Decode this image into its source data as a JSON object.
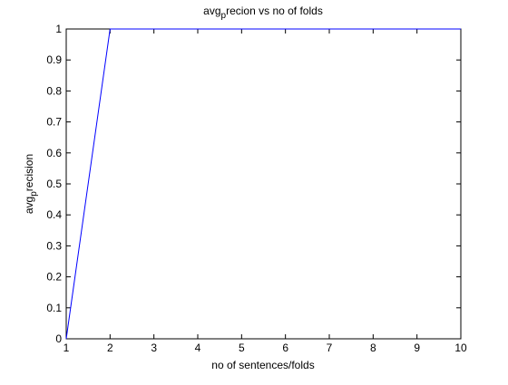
{
  "chart_data": {
    "type": "line",
    "title": {
      "base": "avg",
      "sub": "p",
      "rest": "recion vs no of folds"
    },
    "xlabel": "no of sentences/folds",
    "ylabel": {
      "base": "avg",
      "sub": "p",
      "rest": "recision"
    },
    "xlim": [
      1,
      10
    ],
    "ylim": [
      0,
      1
    ],
    "xticks": [
      1,
      2,
      3,
      4,
      5,
      6,
      7,
      8,
      9,
      10
    ],
    "xtick_labels": [
      "1",
      "2",
      "3",
      "4",
      "5",
      "6",
      "7",
      "8",
      "9",
      "10"
    ],
    "yticks": [
      0,
      0.1,
      0.2,
      0.3,
      0.4,
      0.5,
      0.6,
      0.7,
      0.8,
      0.9,
      1
    ],
    "ytick_labels": [
      "0",
      "0.1",
      "0.2",
      "0.3",
      "0.4",
      "0.5",
      "0.6",
      "0.7",
      "0.8",
      "0.9",
      "1"
    ],
    "grid": false,
    "series": [
      {
        "color": "#0000ff",
        "x": [
          1,
          2,
          3,
          4,
          5,
          6,
          7,
          8,
          9,
          10
        ],
        "y": [
          0,
          1,
          1,
          1,
          1,
          1,
          1,
          1,
          1,
          1
        ]
      }
    ]
  }
}
